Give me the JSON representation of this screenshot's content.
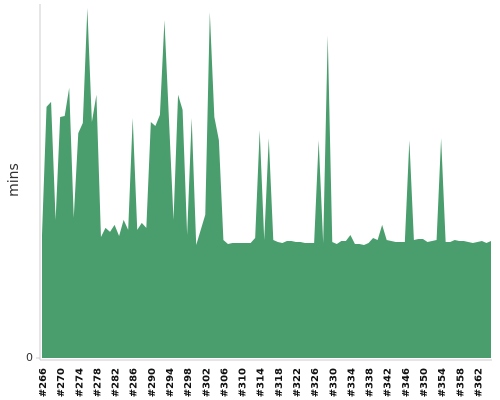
{
  "chart_data": {
    "type": "area",
    "y_label": "mins",
    "categories": [
      "#266",
      null,
      null,
      null,
      "#270",
      null,
      null,
      null,
      "#274",
      null,
      null,
      null,
      "#278",
      null,
      null,
      null,
      "#282",
      null,
      null,
      null,
      "#286",
      null,
      null,
      null,
      "#290",
      null,
      null,
      null,
      "#294",
      null,
      null,
      null,
      "#298",
      null,
      null,
      null,
      "#302",
      null,
      null,
      null,
      "#306",
      null,
      null,
      null,
      "#310",
      null,
      null,
      null,
      "#314",
      null,
      null,
      null,
      "#318",
      null,
      null,
      null,
      "#322",
      null,
      null,
      null,
      "#326",
      null,
      null,
      null,
      "#330",
      null,
      null,
      null,
      "#334",
      null,
      null,
      null,
      "#338",
      null,
      null,
      null,
      "#342",
      null,
      null,
      null,
      "#346",
      null,
      null,
      null,
      "#350",
      null,
      null,
      null,
      "#354",
      null,
      null,
      null,
      "#358",
      null,
      null,
      null,
      "#362",
      null,
      null,
      null
    ],
    "values": [
      12.2,
      24.9,
      25.4,
      13.7,
      23.9,
      24.0,
      26.8,
      13.9,
      22.3,
      23.3,
      34.7,
      23.4,
      26.1,
      12.0,
      12.9,
      12.5,
      13.2,
      12.1,
      13.7,
      12.7,
      23.8,
      12.7,
      13.4,
      12.9,
      23.4,
      23.0,
      24.1,
      33.5,
      23.6,
      13.7,
      26.1,
      24.6,
      12.2,
      23.8,
      11.2,
      12.7,
      14.2,
      34.3,
      23.9,
      21.6,
      11.7,
      11.3,
      11.4,
      11.4,
      11.4,
      11.4,
      11.4,
      11.9,
      22.6,
      11.7,
      21.8,
      11.7,
      11.5,
      11.4,
      11.6,
      11.6,
      11.5,
      11.5,
      11.4,
      11.4,
      11.4,
      21.6,
      11.4,
      32.0,
      11.5,
      11.3,
      11.6,
      11.6,
      12.2,
      11.3,
      11.3,
      11.2,
      11.4,
      11.9,
      11.7,
      13.2,
      11.7,
      11.6,
      11.5,
      11.5,
      11.5,
      21.6,
      11.7,
      11.8,
      11.8,
      11.5,
      11.6,
      11.7,
      21.8,
      11.5,
      11.5,
      11.7,
      11.6,
      11.6,
      11.5,
      11.4,
      11.5,
      11.6,
      11.4,
      11.6
    ],
    "color": "#4a9e6d",
    "ylim": [
      0,
      35
    ],
    "yticks": [
      0
    ]
  }
}
